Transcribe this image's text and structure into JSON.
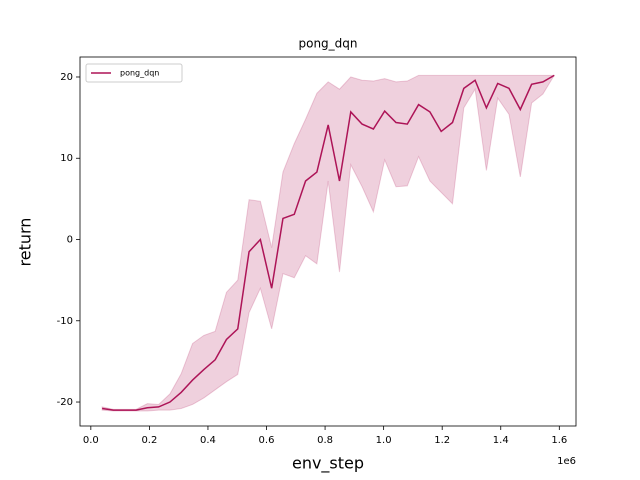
{
  "chart_data": {
    "type": "line",
    "title": "pong_dqn",
    "x_label": "env_step",
    "y_label": "return",
    "x_offset_label": "1e6",
    "x": [
      38600,
      77200,
      115800,
      154400,
      193000,
      231600,
      270200,
      308800,
      347400,
      386000,
      424600,
      463200,
      501800,
      540400,
      579000,
      617600,
      656200,
      694800,
      733400,
      772000,
      810600,
      849200,
      887800,
      926400,
      965000,
      1003600,
      1042200,
      1080800,
      1119400,
      1158000,
      1196600,
      1235200,
      1273800,
      1312400,
      1351000,
      1389600,
      1428200,
      1466800,
      1505400,
      1544000,
      1582600
    ],
    "series": [
      {
        "name": "pong_dqn",
        "color": "#ad1457",
        "values": [
          -20.8,
          -21.0,
          -21.0,
          -21.0,
          -20.7,
          -20.6,
          -20.0,
          -18.8,
          -17.3,
          -16.0,
          -14.8,
          -12.3,
          -11.0,
          -1.5,
          0,
          -6.0,
          2.6,
          3.1,
          7.2,
          8.3,
          14.1,
          7.2,
          15.7,
          14.2,
          13.6,
          15.8,
          14.4,
          14.2,
          16.6,
          15.7,
          13.3,
          14.4,
          18.6,
          19.6,
          16.2,
          19.2,
          18.6,
          16.0,
          19.1,
          19.4,
          20.2
        ],
        "lower": [
          -21.0,
          -21.1,
          -21.1,
          -21.1,
          -21.1,
          -21.0,
          -21.0,
          -20.8,
          -20.3,
          -19.5,
          -18.5,
          -17.5,
          -16.6,
          -9.0,
          -6.0,
          -11.0,
          -4.2,
          -4.7,
          -2.0,
          -3.0,
          7.2,
          -4.0,
          9.2,
          6.5,
          3.4,
          9.8,
          6.5,
          6.6,
          10.2,
          7.2,
          5.8,
          4.4,
          16.2,
          18.5,
          8.5,
          17.4,
          15.4,
          7.7,
          16.8,
          17.9,
          20.2
        ],
        "upper": [
          -20.6,
          -20.9,
          -20.9,
          -20.9,
          -20.2,
          -20.3,
          -19.0,
          -16.5,
          -12.8,
          -11.8,
          -11.3,
          -6.5,
          -5.0,
          4.9,
          4.7,
          -1.0,
          8.3,
          11.8,
          14.8,
          18.0,
          19.4,
          18.5,
          20.0,
          19.6,
          19.5,
          19.8,
          19.4,
          19.5,
          20.2,
          20.2,
          20.2,
          20.2,
          20.2,
          20.2,
          20.2,
          20.2,
          20.2,
          20.2,
          20.2,
          20.2,
          20.2
        ]
      }
    ],
    "xlim": [
      -37000,
      1657000
    ],
    "ylim": [
      -22.95,
      22.46
    ],
    "xticks": [
      {
        "value": 0,
        "label": "0.0"
      },
      {
        "value": 200000,
        "label": "0.2"
      },
      {
        "value": 400000,
        "label": "0.4"
      },
      {
        "value": 600000,
        "label": "0.6"
      },
      {
        "value": 800000,
        "label": "0.8"
      },
      {
        "value": 1000000,
        "label": "1.0"
      },
      {
        "value": 1200000,
        "label": "1.2"
      },
      {
        "value": 1400000,
        "label": "1.4"
      },
      {
        "value": 1600000,
        "label": "1.6"
      }
    ],
    "yticks": [
      -20,
      -10,
      0,
      10,
      20
    ],
    "legend": "upper-left"
  }
}
